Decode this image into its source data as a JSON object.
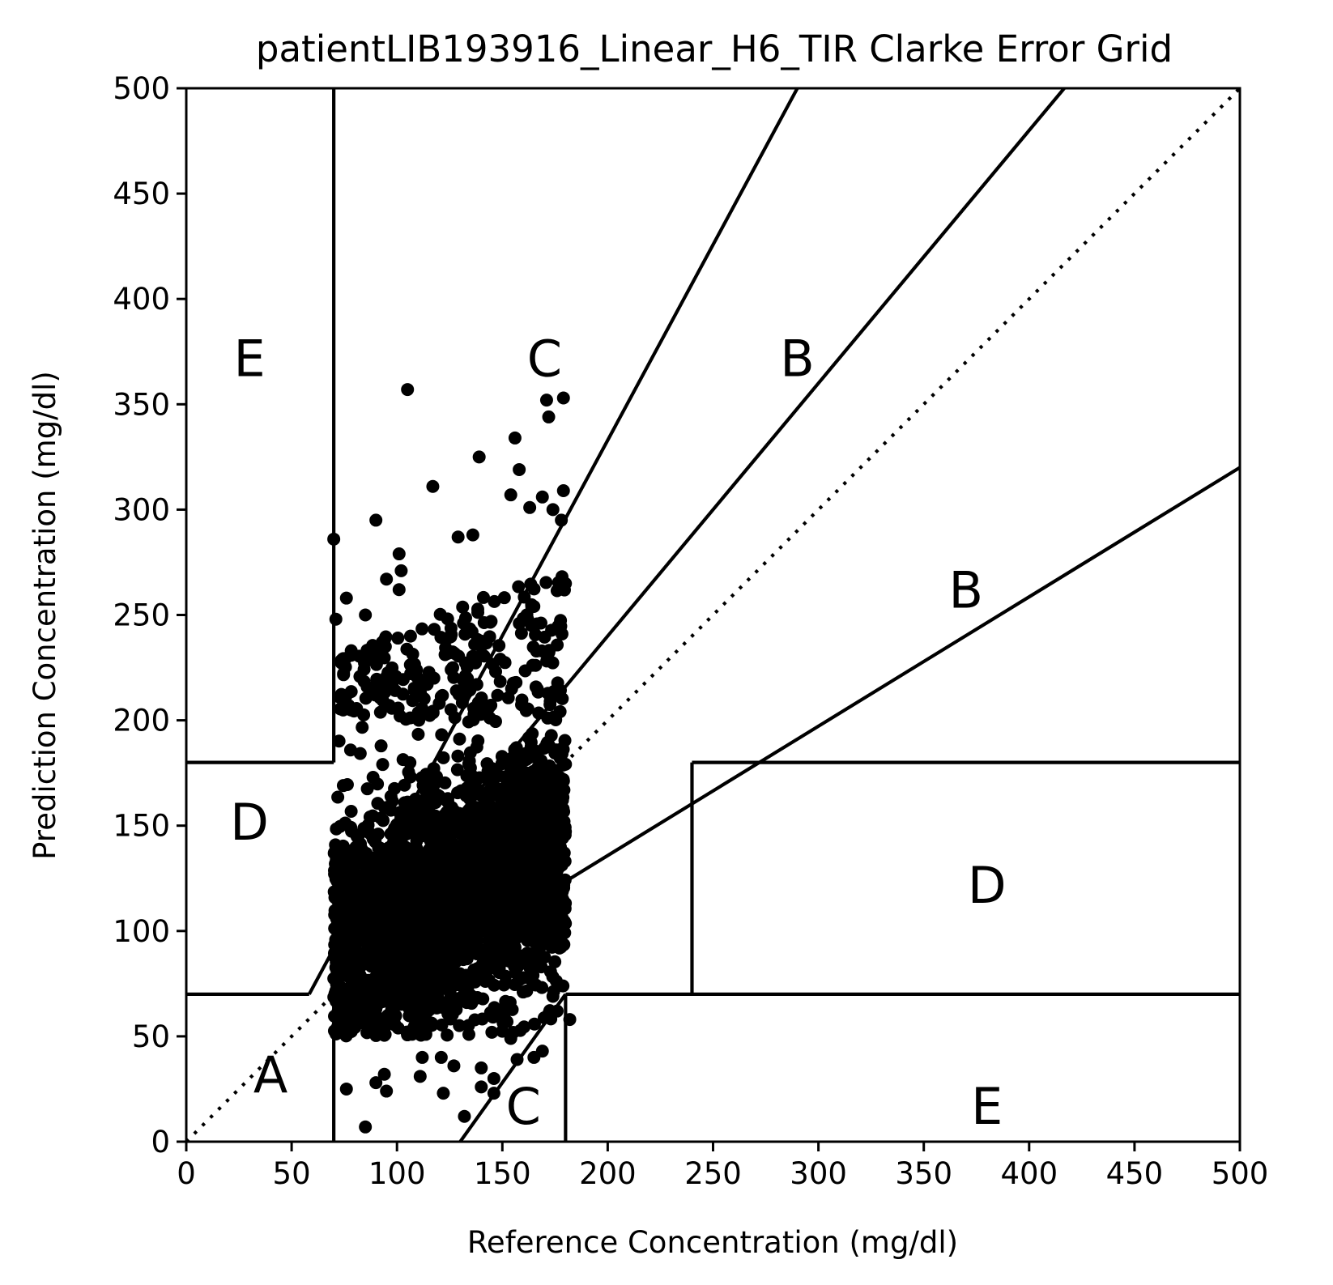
{
  "chart_data": {
    "type": "scatter",
    "title": "patientLIB193916_Linear_H6_TIR Clarke Error Grid",
    "xlabel": "Reference Concentration (mg/dl)",
    "ylabel": "Prediction Concentration (mg/dl)",
    "xlim": [
      0,
      500
    ],
    "ylim": [
      0,
      500
    ],
    "x_ticks": [
      "0",
      "50",
      "100",
      "150",
      "200",
      "250",
      "300",
      "350",
      "400",
      "450",
      "500"
    ],
    "y_ticks": [
      "0",
      "50",
      "100",
      "150",
      "200",
      "250",
      "300",
      "350",
      "400",
      "450",
      "500"
    ],
    "grid": false,
    "marker_color": "#000000",
    "zone_lines": [
      {
        "from": [
          0,
          0
        ],
        "to": [
          500,
          500
        ],
        "style": "dotted"
      },
      {
        "from": [
          0,
          70
        ],
        "to": [
          58.33,
          70
        ]
      },
      {
        "from": [
          58.33,
          70
        ],
        "to": [
          290,
          500
        ]
      },
      {
        "from": [
          70,
          180
        ],
        "to": [
          70,
          500
        ]
      },
      {
        "from": [
          70,
          84
        ],
        "to": [
          416.67,
          500
        ]
      },
      {
        "from": [
          70,
          56
        ],
        "to": [
          500,
          320
        ]
      },
      {
        "from": [
          130,
          0
        ],
        "to": [
          180,
          70
        ]
      },
      {
        "from": [
          180,
          0
        ],
        "to": [
          180,
          70
        ]
      },
      {
        "from": [
          180,
          70
        ],
        "to": [
          500,
          70
        ]
      },
      {
        "from": [
          240,
          70
        ],
        "to": [
          240,
          180
        ]
      },
      {
        "from": [
          240,
          180
        ],
        "to": [
          500,
          180
        ]
      },
      {
        "from": [
          0,
          180
        ],
        "to": [
          70,
          180
        ]
      },
      {
        "from": [
          70,
          0
        ],
        "to": [
          70,
          84
        ]
      }
    ],
    "zone_labels": [
      {
        "text": "A",
        "x": 40,
        "y": 30
      },
      {
        "text": "B",
        "x": 370,
        "y": 260
      },
      {
        "text": "B",
        "x": 290,
        "y": 370
      },
      {
        "text": "C",
        "x": 170,
        "y": 370
      },
      {
        "text": "C",
        "x": 160,
        "y": 15
      },
      {
        "text": "D",
        "x": 30,
        "y": 150
      },
      {
        "text": "D",
        "x": 380,
        "y": 120
      },
      {
        "text": "E",
        "x": 30,
        "y": 370
      },
      {
        "text": "E",
        "x": 380,
        "y": 15
      }
    ],
    "points_summary": "approximately 4000 points densely packed for x in 70-180, y mostly 55-230",
    "outlier_points": [
      {
        "x": 70,
        "y": 286
      },
      {
        "x": 105,
        "y": 357
      },
      {
        "x": 90,
        "y": 295
      },
      {
        "x": 117,
        "y": 311
      },
      {
        "x": 139,
        "y": 325
      },
      {
        "x": 156,
        "y": 334
      },
      {
        "x": 158,
        "y": 319
      },
      {
        "x": 171,
        "y": 352
      },
      {
        "x": 179,
        "y": 353
      },
      {
        "x": 172,
        "y": 344
      },
      {
        "x": 179,
        "y": 309
      },
      {
        "x": 154,
        "y": 307
      },
      {
        "x": 169,
        "y": 306
      },
      {
        "x": 163,
        "y": 301
      },
      {
        "x": 174,
        "y": 300
      },
      {
        "x": 178,
        "y": 295
      },
      {
        "x": 101,
        "y": 279
      },
      {
        "x": 102,
        "y": 271
      },
      {
        "x": 95,
        "y": 267
      },
      {
        "x": 101,
        "y": 262
      },
      {
        "x": 136,
        "y": 288
      },
      {
        "x": 129,
        "y": 287
      },
      {
        "x": 76,
        "y": 258
      },
      {
        "x": 71,
        "y": 248
      },
      {
        "x": 85,
        "y": 250
      },
      {
        "x": 93,
        "y": 237
      },
      {
        "x": 85,
        "y": 7
      },
      {
        "x": 132,
        "y": 12
      },
      {
        "x": 122,
        "y": 23
      },
      {
        "x": 146,
        "y": 23
      },
      {
        "x": 95,
        "y": 24
      },
      {
        "x": 76,
        "y": 25
      },
      {
        "x": 140,
        "y": 26
      },
      {
        "x": 90,
        "y": 28
      },
      {
        "x": 146,
        "y": 30
      },
      {
        "x": 111,
        "y": 31
      },
      {
        "x": 94,
        "y": 32
      },
      {
        "x": 140,
        "y": 35
      },
      {
        "x": 127,
        "y": 36
      },
      {
        "x": 157,
        "y": 39
      },
      {
        "x": 169,
        "y": 43
      },
      {
        "x": 165,
        "y": 40
      },
      {
        "x": 154,
        "y": 49
      },
      {
        "x": 112,
        "y": 40
      },
      {
        "x": 182,
        "y": 58
      },
      {
        "x": 176,
        "y": 62
      },
      {
        "x": 174,
        "y": 69
      },
      {
        "x": 121,
        "y": 40
      }
    ]
  }
}
